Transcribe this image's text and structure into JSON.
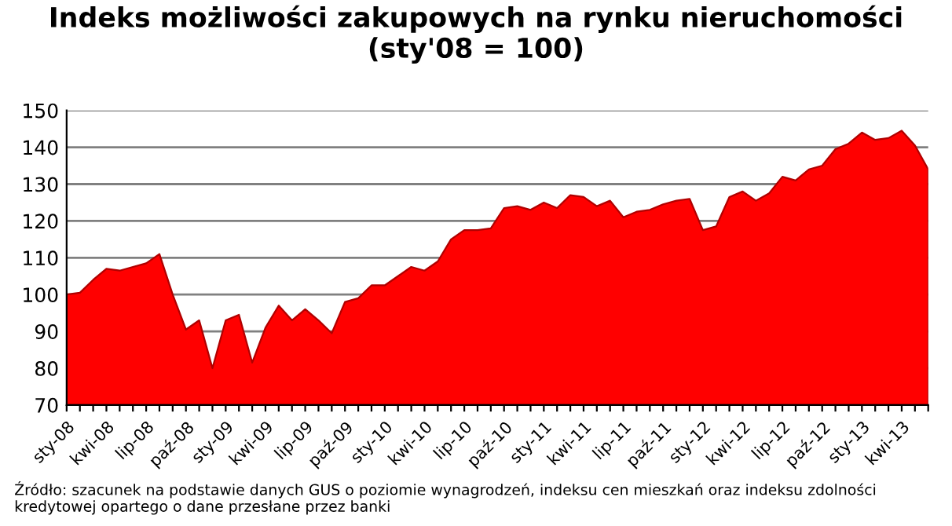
{
  "chart_data": {
    "type": "area",
    "title": "Indeks możliwości zakupowych na rynku nieruchomości\n(sty'08 = 100)",
    "categories": [
      "sty-08",
      null,
      null,
      "kwi-08",
      null,
      null,
      "lip-08",
      null,
      null,
      "paź-08",
      null,
      null,
      "sty-09",
      null,
      null,
      "kwi-09",
      null,
      null,
      "lip-09",
      null,
      null,
      "paź-09",
      null,
      null,
      "sty-10",
      null,
      null,
      "kwi-10",
      null,
      null,
      "lip-10",
      null,
      null,
      "paź-10",
      null,
      null,
      "sty-11",
      null,
      null,
      "kwi-11",
      null,
      null,
      "lip-11",
      null,
      null,
      "paź-11",
      null,
      null,
      "sty-12",
      null,
      null,
      "kwi-12",
      null,
      null,
      "lip-12",
      null,
      null,
      "paź-12",
      null,
      null,
      "sty-13",
      null,
      null,
      "kwi-13",
      null,
      null
    ],
    "series": [
      {
        "color": "#ff0000",
        "values": [
          100,
          100.5,
          104,
          107,
          106.5,
          107.5,
          108.5,
          111,
          100,
          90.5,
          93,
          80,
          93,
          94.5,
          81.5,
          91,
          97,
          93,
          96,
          93,
          89.5,
          98,
          99,
          102.5,
          102.5,
          105,
          107.5,
          106.5,
          109,
          115,
          117.5,
          117.5,
          118,
          123.5,
          124,
          123,
          125,
          123.5,
          127,
          126.5,
          124,
          125.5,
          121,
          122.5,
          123,
          124.5,
          125.5,
          126,
          117.5,
          118.5,
          126.5,
          128,
          125.5,
          127.5,
          132,
          131,
          134,
          135,
          139.5,
          141,
          144,
          142,
          142.5,
          144.5,
          140.5,
          134
        ]
      }
    ],
    "ylim": [
      70,
      150
    ],
    "yticks": [
      70,
      80,
      90,
      100,
      110,
      120,
      130,
      140,
      150
    ],
    "grid": "y",
    "annotations": [
      "Źródło: szacunek na podstawie danych GUS o poziomie wynagrodzeń, indeksu cen mieszkań oraz indeksu zdolności kredytowej opartego o dane przesłane przez banki"
    ]
  }
}
